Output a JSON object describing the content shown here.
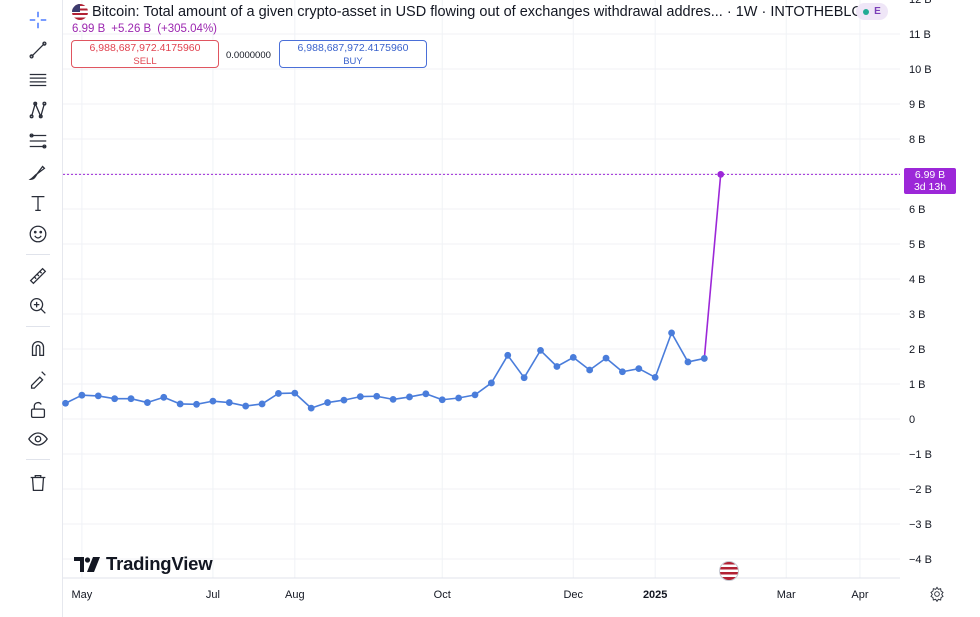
{
  "header": {
    "title": "Bitcoin: Total amount of a given crypto-asset in USD flowing out of exchanges withdrawal addres... · 1W · INTOTHEBLO...",
    "last_value": "6.99 B",
    "change": "+5.26 B",
    "change_pct": "(+305.04%)",
    "badge_letter": "E"
  },
  "trade": {
    "sell_price": "6,988,687,972.4175960",
    "sell_label": "SELL",
    "spread": "0.0000000",
    "buy_price": "6,988,687,972.4175960",
    "buy_label": "BUY"
  },
  "price_tag": {
    "value": "6.99 B",
    "countdown": "3d 13h"
  },
  "brand": {
    "name": "TradingView"
  },
  "colors": {
    "line": "#4a7ddb",
    "last_segment": "#9c27d8",
    "sell": "#e0424f",
    "buy": "#3a62cc"
  },
  "toolbar": [
    "crosshair-icon",
    "trend-line-icon",
    "horizontal-lines-icon",
    "pattern-icon",
    "fib-icon",
    "brush-icon",
    "text-icon",
    "emoji-icon",
    "ruler-icon",
    "zoom-in-icon",
    "magnet-icon",
    "lock-drawing-icon",
    "unlock-icon",
    "eye-icon",
    "trash-icon"
  ],
  "chart_data": {
    "type": "line",
    "title": "Bitcoin: Total amount of a given crypto-asset in USD flowing out of exchanges withdrawal addres...",
    "xlabel": "",
    "ylabel": "",
    "ylim": [
      -4.4,
      12
    ],
    "y_unit": "B",
    "y_ticks": [
      "12 B",
      "11 B",
      "10 B",
      "9 B",
      "8 B",
      "7 B",
      "6 B",
      "5 B",
      "4 B",
      "3 B",
      "2 B",
      "1 B",
      "0",
      "−1 B",
      "−2 B",
      "−3 B",
      "−4 B"
    ],
    "y_tick_values": [
      12,
      11,
      10,
      9,
      8,
      7,
      6,
      5,
      4,
      3,
      2,
      1,
      0,
      -1,
      -2,
      -3,
      -4
    ],
    "x_ticks": [
      "May",
      "Jul",
      "Aug",
      "Oct",
      "Dec",
      "2025",
      "Mar",
      "Apr"
    ],
    "x_tick_weeks": [
      1,
      9,
      14,
      23,
      31,
      36,
      44,
      48.5
    ],
    "x_tick_bold": [
      false,
      false,
      false,
      false,
      false,
      true,
      false,
      false
    ],
    "grid": true,
    "legend": "none",
    "series": [
      {
        "values": [
          0.45,
          0.68,
          0.66,
          0.58,
          0.58,
          0.47,
          0.62,
          0.43,
          0.42,
          0.51,
          0.47,
          0.37,
          0.43,
          0.73,
          0.74,
          0.31,
          0.47,
          0.54,
          0.64,
          0.65,
          0.56,
          0.63,
          0.72,
          0.55,
          0.6,
          0.69,
          1.03,
          1.82,
          1.18,
          1.96,
          1.5,
          1.76,
          1.4,
          1.74,
          1.35,
          1.44,
          1.19,
          2.46,
          1.63,
          1.73,
          6.99
        ]
      }
    ]
  }
}
